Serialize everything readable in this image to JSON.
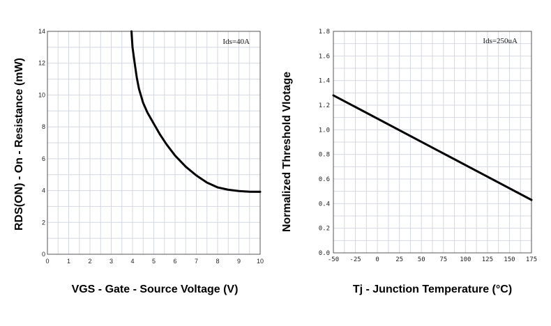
{
  "chart_data": [
    {
      "type": "line",
      "title": "",
      "xlabel": "VGS - Gate - Source Voltage (V)",
      "ylabel": "RDS(ON) - On - Resistance (mW)",
      "xlim": [
        0,
        10
      ],
      "ylim": [
        0,
        14
      ],
      "xticks": [
        0,
        1,
        2,
        3,
        4,
        5,
        6,
        7,
        8,
        9,
        10
      ],
      "yticks": [
        0,
        2,
        4,
        6,
        8,
        10,
        12,
        14
      ],
      "grid": true,
      "annotation": "Ids=40A",
      "series": [
        {
          "x": [
            3.95,
            4.0,
            4.1,
            4.2,
            4.3,
            4.5,
            4.7,
            5.0,
            5.3,
            5.6,
            6.0,
            6.5,
            7.0,
            7.5,
            8.0,
            8.5,
            9.0,
            9.5,
            10.0
          ],
          "y": [
            14.0,
            13.0,
            12.0,
            11.1,
            10.4,
            9.5,
            8.9,
            8.2,
            7.5,
            6.9,
            6.2,
            5.5,
            4.95,
            4.5,
            4.2,
            4.05,
            3.97,
            3.93,
            3.92
          ]
        }
      ]
    },
    {
      "type": "line",
      "title": "",
      "xlabel": "Tj - Junction Temperature (°C)",
      "ylabel": "Normalized Threshold Vlotage",
      "xlim": [
        -50,
        175
      ],
      "ylim": [
        0.0,
        1.8
      ],
      "xticks": [
        -50,
        -25,
        0,
        25,
        50,
        75,
        100,
        125,
        150,
        175
      ],
      "xtick_labels": [
        "-50",
        "-25",
        "0",
        "25",
        "50",
        "75",
        "100",
        "125",
        "150",
        "175"
      ],
      "yticks": [
        0.0,
        0.2,
        0.4,
        0.6,
        0.8,
        1.0,
        1.2,
        1.4,
        1.6,
        1.8
      ],
      "ytick_labels": [
        "0.0",
        "0.2",
        "0.4",
        "0.6",
        "0.8",
        "1.0",
        "1.2",
        "1.4",
        "1.6",
        "1.8"
      ],
      "grid": true,
      "annotation": "Ids=250uA",
      "series": [
        {
          "x": [
            -50,
            175
          ],
          "y": [
            1.28,
            0.43
          ]
        }
      ]
    }
  ]
}
